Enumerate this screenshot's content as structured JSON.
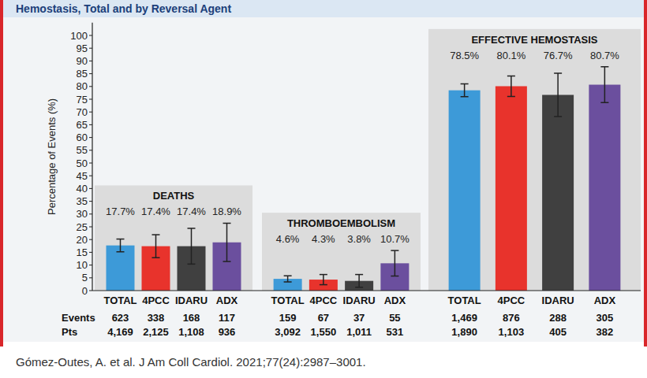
{
  "chart_data": {
    "type": "bar",
    "title": "Hemostasis, Total and by Reversal Agent",
    "ylabel": "Percentage of Events (%)",
    "ylim": [
      0,
      105
    ],
    "yticks": [
      0,
      5,
      10,
      15,
      20,
      25,
      30,
      35,
      40,
      45,
      50,
      55,
      60,
      65,
      70,
      75,
      80,
      85,
      90,
      95,
      100
    ],
    "grid": false,
    "data_labels": true,
    "row_labels": [
      "Events",
      "Pts"
    ],
    "colors": [
      "#3d9ad8",
      "#e8332c",
      "#404040",
      "#6b4f9e"
    ],
    "groups": [
      {
        "title": "DEATHS",
        "categories": [
          "TOTAL",
          "4PCC",
          "IDARU",
          "ADX"
        ],
        "values": [
          17.7,
          17.4,
          17.4,
          18.9
        ],
        "value_labels": [
          "17.7%",
          "17.4%",
          "17.4%",
          "18.9%"
        ],
        "errors": [
          2.5,
          4.5,
          7,
          7.5
        ],
        "events": [
          "623",
          "338",
          "168",
          "117"
        ],
        "patients": [
          "4,169",
          "2,125",
          "1,108",
          "936"
        ]
      },
      {
        "title": "THROMBOEMBOLISM",
        "categories": [
          "TOTAL",
          "4PCC",
          "IDARU",
          "ADX"
        ],
        "values": [
          4.6,
          4.3,
          3.8,
          10.7
        ],
        "value_labels": [
          "4.6%",
          "4.3%",
          "3.8%",
          "10.7%"
        ],
        "errors": [
          1.2,
          2,
          2.5,
          5
        ],
        "events": [
          "159",
          "67",
          "37",
          "55"
        ],
        "patients": [
          "3,092",
          "1,550",
          "1,011",
          "531"
        ]
      },
      {
        "title": "EFFECTIVE HEMOSTASIS",
        "categories": [
          "TOTAL",
          "4PCC",
          "IDARU",
          "ADX"
        ],
        "values": [
          78.5,
          80.1,
          76.7,
          80.7
        ],
        "value_labels": [
          "78.5%",
          "80.1%",
          "76.7%",
          "80.7%"
        ],
        "errors": [
          2.5,
          4,
          8.5,
          7
        ],
        "events": [
          "1,469",
          "876",
          "288",
          "305"
        ],
        "patients": [
          "1,890",
          "1,103",
          "405",
          "382"
        ]
      }
    ]
  },
  "footer": {
    "source": "Gómez-Outes, A. et al. J Am Coll Cardiol. 2021;77(24):2987–3001."
  }
}
